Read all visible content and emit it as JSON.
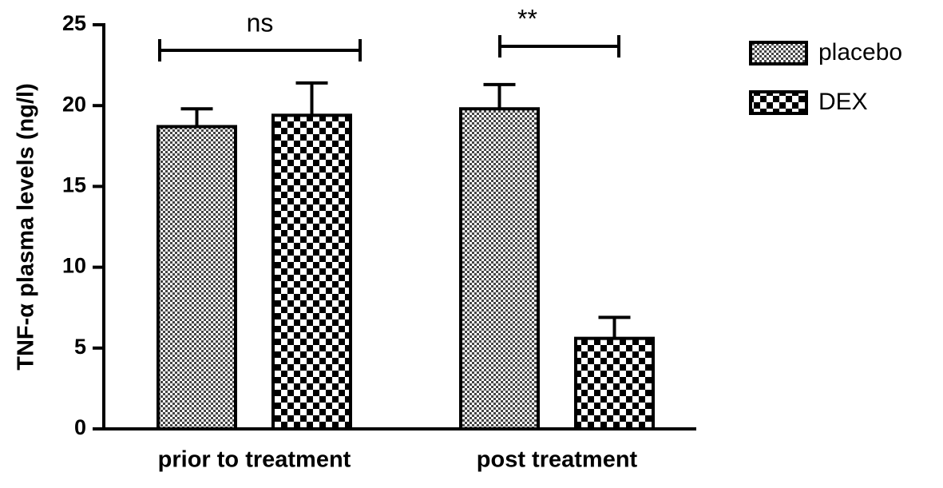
{
  "chart_data": {
    "type": "bar",
    "y_label": "TNF-α  plasma levels (ng/l)",
    "categories": [
      "prior to treatment",
      "post treatment"
    ],
    "series": [
      {
        "name": "placebo",
        "color": "#000000",
        "pattern": "fine",
        "values": [
          18.7,
          19.8
        ],
        "errors": [
          1.1,
          1.5
        ]
      },
      {
        "name": "DEX",
        "color": "#000000",
        "pattern": "coarse",
        "values": [
          19.4,
          5.6
        ],
        "errors": [
          2.0,
          1.3
        ]
      }
    ],
    "annotations": [
      {
        "text": "ns",
        "category": 0
      },
      {
        "text": "**",
        "category": 1
      }
    ],
    "ylim": [
      0,
      25
    ],
    "yticks": [
      0,
      5,
      10,
      15,
      20,
      25
    ],
    "legend": "right"
  }
}
